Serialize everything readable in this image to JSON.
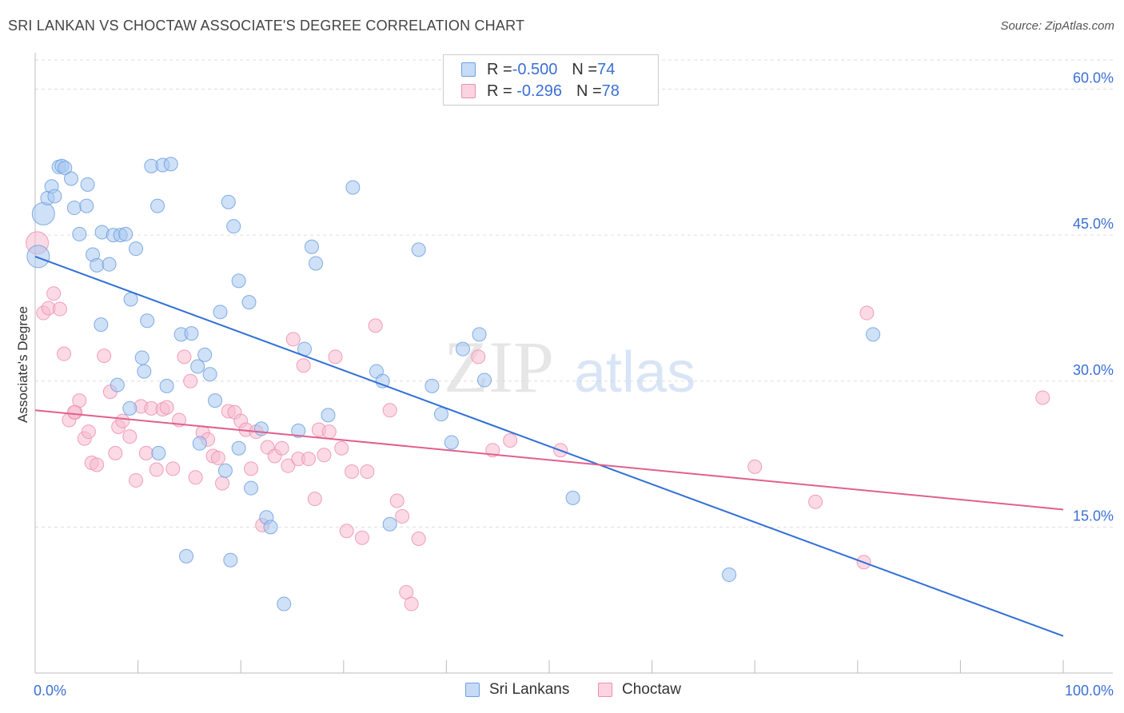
{
  "title": "SRI LANKAN VS CHOCTAW ASSOCIATE'S DEGREE CORRELATION CHART",
  "source": "Source: ZipAtlas.com",
  "watermark": {
    "zip": "ZIP",
    "atlas": "atlas"
  },
  "legend": {
    "rows": [
      {
        "r_label": "R = ",
        "r_value": "-0.500",
        "n_label": "N = ",
        "n_value": "74"
      },
      {
        "r_label": "R = ",
        "r_value": " -0.296",
        "n_label": "N = ",
        "n_value": "78"
      }
    ]
  },
  "bottom_legend": {
    "items": [
      "Sri Lankans",
      "Choctaw"
    ]
  },
  "colors": {
    "blue_fill": "#a8c8f0",
    "blue_stroke": "#6f9fe0",
    "blue_line": "#2f6fd6",
    "pink_fill": "#f8bcd0",
    "pink_stroke": "#ee8fb0",
    "pink_line": "#e0608c",
    "tick_label": "#3b6fd4",
    "grid": "#dddddd"
  },
  "chart_data": {
    "type": "scatter",
    "title": "SRI LANKAN VS CHOCTAW ASSOCIATE'S DEGREE CORRELATION CHART",
    "xlabel": "",
    "ylabel": "Associate's Degree",
    "xlim": [
      0,
      100
    ],
    "ylim": [
      0,
      63
    ],
    "x_tick_labels": [
      {
        "value": 0,
        "label": "0.0%"
      },
      {
        "value": 100,
        "label": "100.0%"
      }
    ],
    "y_tick_labels": [
      {
        "value": 15,
        "label": "15.0%"
      },
      {
        "value": 30,
        "label": "30.0%"
      },
      {
        "value": 45,
        "label": "45.0%"
      },
      {
        "value": 60,
        "label": "60.0%"
      }
    ],
    "series": [
      {
        "name": "Sri Lankans",
        "R": -0.5,
        "N": 74,
        "trend": {
          "x": [
            0,
            100
          ],
          "y": [
            42.8,
            3.8
          ]
        },
        "points": [
          [
            0.3,
            42.8
          ],
          [
            0.8,
            47.2
          ],
          [
            1.2,
            48.8
          ],
          [
            1.6,
            50.0
          ],
          [
            1.9,
            49.0
          ],
          [
            2.3,
            52.0
          ],
          [
            2.6,
            52.1
          ],
          [
            2.9,
            51.9
          ],
          [
            3.5,
            50.8
          ],
          [
            3.8,
            47.8
          ],
          [
            4.3,
            45.1
          ],
          [
            5.0,
            48.0
          ],
          [
            5.1,
            50.2
          ],
          [
            5.6,
            43.0
          ],
          [
            6.0,
            41.9
          ],
          [
            6.5,
            45.3
          ],
          [
            7.2,
            42.0
          ],
          [
            7.6,
            45.0
          ],
          [
            8.3,
            45.0
          ],
          [
            8.8,
            45.1
          ],
          [
            9.3,
            38.4
          ],
          [
            9.8,
            43.6
          ],
          [
            10.4,
            32.4
          ],
          [
            10.9,
            36.2
          ],
          [
            11.3,
            52.1
          ],
          [
            11.9,
            48.0
          ],
          [
            12.4,
            52.2
          ],
          [
            13.2,
            52.3
          ],
          [
            14.2,
            34.8
          ],
          [
            15.2,
            34.9
          ],
          [
            15.8,
            31.5
          ],
          [
            16.5,
            32.7
          ],
          [
            17.0,
            30.7
          ],
          [
            17.5,
            28.0
          ],
          [
            18.0,
            37.1
          ],
          [
            18.8,
            48.4
          ],
          [
            19.3,
            45.9
          ],
          [
            19.8,
            40.3
          ],
          [
            20.8,
            38.1
          ],
          [
            19.0,
            11.6
          ],
          [
            14.7,
            12.0
          ],
          [
            6.4,
            35.8
          ],
          [
            8.0,
            29.6
          ],
          [
            9.2,
            27.2
          ],
          [
            10.6,
            31.0
          ],
          [
            12.8,
            29.5
          ],
          [
            12.0,
            22.6
          ],
          [
            16.0,
            23.6
          ],
          [
            18.5,
            20.8
          ],
          [
            19.8,
            23.1
          ],
          [
            21.0,
            19.0
          ],
          [
            22.0,
            25.1
          ],
          [
            22.5,
            16.0
          ],
          [
            22.9,
            15.0
          ],
          [
            24.2,
            7.1
          ],
          [
            25.6,
            24.9
          ],
          [
            26.2,
            33.3
          ],
          [
            26.9,
            43.8
          ],
          [
            27.3,
            42.1
          ],
          [
            28.5,
            26.5
          ],
          [
            30.9,
            49.9
          ],
          [
            33.2,
            31.0
          ],
          [
            33.8,
            30.0
          ],
          [
            34.5,
            15.3
          ],
          [
            37.3,
            43.5
          ],
          [
            38.6,
            29.5
          ],
          [
            39.5,
            26.6
          ],
          [
            40.5,
            23.7
          ],
          [
            41.6,
            33.3
          ],
          [
            43.2,
            34.8
          ],
          [
            43.7,
            30.1
          ],
          [
            52.3,
            18.0
          ],
          [
            67.5,
            10.1
          ],
          [
            81.5,
            34.8
          ]
        ]
      },
      {
        "name": "Choctaw",
        "R": -0.296,
        "N": 78,
        "trend": {
          "x": [
            0,
            100
          ],
          "y": [
            27.0,
            16.8
          ]
        },
        "points": [
          [
            0.2,
            44.2
          ],
          [
            0.8,
            37.0
          ],
          [
            1.3,
            37.5
          ],
          [
            1.8,
            39.0
          ],
          [
            2.4,
            37.4
          ],
          [
            2.8,
            32.8
          ],
          [
            3.3,
            26.0
          ],
          [
            3.9,
            26.8
          ],
          [
            4.3,
            28.0
          ],
          [
            4.8,
            24.1
          ],
          [
            5.2,
            24.8
          ],
          [
            5.5,
            21.6
          ],
          [
            6.0,
            21.4
          ],
          [
            6.7,
            32.6
          ],
          [
            7.3,
            28.9
          ],
          [
            7.8,
            22.6
          ],
          [
            8.1,
            25.3
          ],
          [
            8.5,
            25.9
          ],
          [
            9.2,
            24.3
          ],
          [
            9.8,
            19.8
          ],
          [
            10.3,
            27.4
          ],
          [
            10.8,
            22.6
          ],
          [
            11.3,
            27.2
          ],
          [
            11.8,
            20.9
          ],
          [
            12.4,
            27.1
          ],
          [
            12.8,
            27.3
          ],
          [
            13.4,
            21.0
          ],
          [
            14.0,
            26.0
          ],
          [
            14.5,
            32.5
          ],
          [
            15.1,
            30.0
          ],
          [
            15.6,
            20.1
          ],
          [
            16.3,
            24.7
          ],
          [
            16.8,
            24.0
          ],
          [
            17.3,
            22.3
          ],
          [
            17.8,
            22.1
          ],
          [
            18.2,
            19.5
          ],
          [
            18.8,
            26.9
          ],
          [
            19.4,
            26.8
          ],
          [
            20.0,
            25.9
          ],
          [
            20.5,
            25.0
          ],
          [
            21.0,
            21.0
          ],
          [
            21.5,
            24.8
          ],
          [
            22.1,
            15.2
          ],
          [
            22.6,
            23.2
          ],
          [
            23.3,
            22.3
          ],
          [
            24.0,
            23.1
          ],
          [
            24.6,
            21.3
          ],
          [
            25.1,
            34.3
          ],
          [
            25.6,
            22.0
          ],
          [
            26.1,
            31.6
          ],
          [
            26.6,
            22.0
          ],
          [
            27.2,
            17.9
          ],
          [
            27.6,
            25.0
          ],
          [
            28.1,
            22.4
          ],
          [
            28.6,
            24.8
          ],
          [
            29.2,
            32.5
          ],
          [
            29.8,
            23.1
          ],
          [
            30.3,
            14.6
          ],
          [
            30.8,
            20.7
          ],
          [
            31.8,
            13.9
          ],
          [
            32.3,
            20.7
          ],
          [
            33.1,
            35.7
          ],
          [
            34.5,
            27.0
          ],
          [
            35.2,
            17.7
          ],
          [
            35.7,
            16.1
          ],
          [
            36.1,
            8.3
          ],
          [
            36.6,
            7.1
          ],
          [
            37.3,
            13.8
          ],
          [
            43.1,
            32.5
          ],
          [
            44.5,
            22.9
          ],
          [
            46.2,
            23.9
          ],
          [
            51.1,
            22.9
          ],
          [
            70.0,
            21.2
          ],
          [
            75.9,
            17.6
          ],
          [
            80.6,
            11.4
          ],
          [
            80.9,
            37.0
          ],
          [
            98.0,
            28.3
          ],
          [
            3.8,
            26.8
          ]
        ]
      }
    ]
  }
}
